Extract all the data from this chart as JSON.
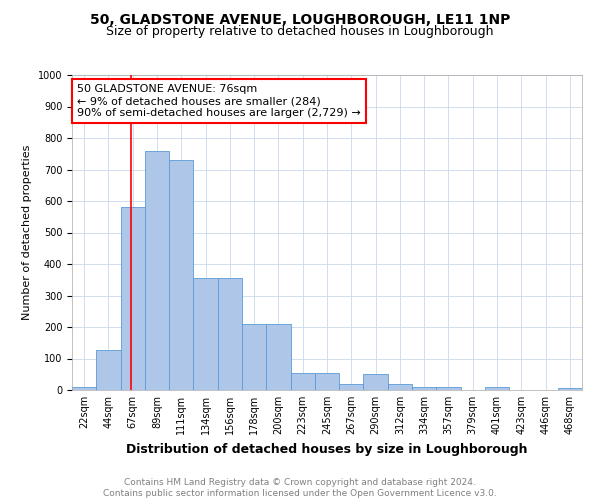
{
  "title": "50, GLADSTONE AVENUE, LOUGHBOROUGH, LE11 1NP",
  "subtitle": "Size of property relative to detached houses in Loughborough",
  "xlabel": "Distribution of detached houses by size in Loughborough",
  "ylabel": "Number of detached properties",
  "bin_labels": [
    "22sqm",
    "44sqm",
    "67sqm",
    "89sqm",
    "111sqm",
    "134sqm",
    "156sqm",
    "178sqm",
    "200sqm",
    "223sqm",
    "245sqm",
    "267sqm",
    "290sqm",
    "312sqm",
    "334sqm",
    "357sqm",
    "379sqm",
    "401sqm",
    "423sqm",
    "446sqm",
    "468sqm"
  ],
  "bar_heights": [
    10,
    128,
    580,
    760,
    730,
    355,
    355,
    210,
    210,
    55,
    55,
    18,
    50,
    18,
    10,
    10,
    0,
    8,
    0,
    0,
    5
  ],
  "bar_color": "#aec6e8",
  "bar_edge_color": "#5b9bd5",
  "grid_color": "#c8d8ea",
  "property_line_color": "red",
  "annotation_text": "50 GLADSTONE AVENUE: 76sqm\n← 9% of detached houses are smaller (284)\n90% of semi-detached houses are larger (2,729) →",
  "annotation_box_color": "white",
  "annotation_box_edge": "red",
  "ylim": [
    0,
    1000
  ],
  "yticks": [
    0,
    100,
    200,
    300,
    400,
    500,
    600,
    700,
    800,
    900,
    1000
  ],
  "footnote": "Contains HM Land Registry data © Crown copyright and database right 2024.\nContains public sector information licensed under the Open Government Licence v3.0.",
  "title_fontsize": 10,
  "subtitle_fontsize": 9,
  "xlabel_fontsize": 9,
  "ylabel_fontsize": 8,
  "tick_fontsize": 7,
  "annotation_fontsize": 8,
  "footnote_fontsize": 6.5
}
